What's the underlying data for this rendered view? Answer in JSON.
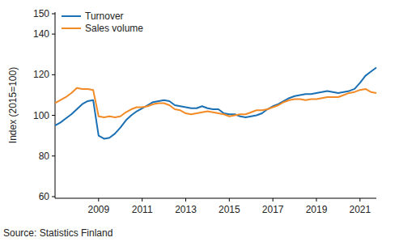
{
  "chart_data": {
    "type": "line",
    "y_label": "Index (2015=100)",
    "source": "Source: Statistics Finland",
    "x": [
      2007,
      2007.25,
      2007.5,
      2007.75,
      2008,
      2008.25,
      2008.5,
      2008.75,
      2009,
      2009.25,
      2009.5,
      2009.75,
      2010,
      2010.25,
      2010.5,
      2010.75,
      2011,
      2011.25,
      2011.5,
      2011.75,
      2012,
      2012.25,
      2012.5,
      2012.75,
      2013,
      2013.25,
      2013.5,
      2013.75,
      2014,
      2014.25,
      2014.5,
      2014.75,
      2015,
      2015.25,
      2015.5,
      2015.75,
      2016,
      2016.25,
      2016.5,
      2016.75,
      2017,
      2017.25,
      2017.5,
      2017.75,
      2018,
      2018.25,
      2018.5,
      2018.75,
      2019,
      2019.25,
      2019.5,
      2019.75,
      2020,
      2020.25,
      2020.5,
      2020.75,
      2021,
      2021.25,
      2021.5,
      2021.75
    ],
    "series": [
      {
        "name": "Turnover",
        "color": "#1b6fb3",
        "values": [
          95,
          96.5,
          98.5,
          100.5,
          103,
          105.5,
          107,
          107.5,
          90,
          88.5,
          89,
          91,
          94,
          97.5,
          100,
          102,
          103.5,
          105,
          106.5,
          107,
          107.5,
          107,
          105,
          104.5,
          104,
          103.5,
          103.5,
          104.5,
          103.5,
          103,
          103,
          101,
          100.5,
          100.5,
          99.5,
          99,
          99.5,
          100,
          101,
          103,
          104.5,
          105.5,
          107,
          108.5,
          109.5,
          110,
          110.5,
          110.5,
          111,
          111.5,
          112,
          111.5,
          111,
          111.5,
          112,
          113,
          116,
          119.5,
          121.5,
          123.5
        ]
      },
      {
        "name": "Sales volume",
        "color": "#f28a25",
        "values": [
          106,
          107.5,
          109,
          111,
          113.5,
          113,
          113,
          112.5,
          99.5,
          99,
          99.5,
          99,
          99.5,
          101.5,
          103,
          104,
          104,
          104.5,
          105.5,
          106,
          106,
          105,
          103,
          102.5,
          101,
          100.5,
          101,
          101.5,
          102,
          101.5,
          101,
          100.5,
          99.5,
          100,
          100.5,
          100.5,
          101.5,
          102.5,
          102.5,
          103,
          104,
          105,
          106.5,
          107.5,
          108,
          108,
          107.5,
          108,
          108,
          108.5,
          109,
          109,
          109,
          110,
          111,
          111.5,
          112.5,
          113,
          111.5,
          111
        ]
      }
    ],
    "xlim": [
      2007,
      2021.75
    ],
    "xticks": [
      2009,
      2011,
      2013,
      2015,
      2017,
      2019,
      2021
    ],
    "ylim": [
      60,
      150
    ],
    "yticks": [
      60,
      80,
      100,
      120,
      140,
      150
    ],
    "grid": false,
    "legend": "upper left"
  }
}
